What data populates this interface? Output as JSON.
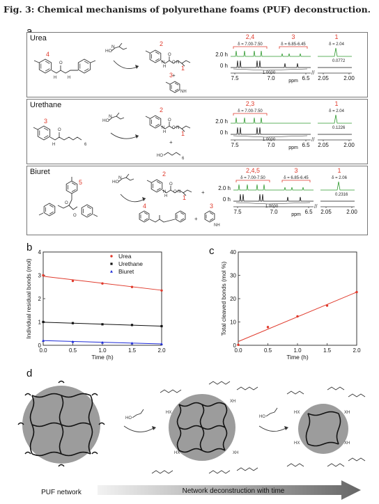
{
  "figure_title": "Fig. 3: Chemical mechanisms of polyurethane foams (PUF) deconstruction.",
  "panel_a": {
    "label": "a",
    "ppm": "ppm",
    "break": "//",
    "rows": [
      {
        "name": "Urea",
        "reactant_num": "4",
        "product_nums": [
          "2",
          "1",
          "3"
        ],
        "plus": "+",
        "nh2": "NH",
        "nh2_sub": "2",
        "peaks": [
          {
            "num": "2,4",
            "delta": "δ = 7.00-7.50"
          },
          {
            "num": "3",
            "delta": "δ = 6.85-6.45"
          },
          {
            "num": "1",
            "delta": "δ = 2.04"
          }
        ],
        "t2": "2.0 h",
        "t0": "0 h",
        "integral_main": "1.0000",
        "integral_small": "0.0772",
        "x_ticks": [
          "7.5",
          "7.0",
          "6.5",
          "2.05",
          "2.00"
        ]
      },
      {
        "name": "Urethane",
        "reactant_num": "3",
        "product_nums": [
          "2",
          "1"
        ],
        "plus": "+",
        "sub6": "6",
        "peaks": [
          {
            "num": "2,3",
            "delta": "δ = 7.00-7.50"
          },
          {
            "num": "1",
            "delta": "δ = 2.04"
          }
        ],
        "t2": "2.0 h",
        "t0": "0 h",
        "integral_main": "1.0000",
        "integral_small": "0.1226",
        "x_ticks": [
          "7.5",
          "7.0",
          "6.5",
          "2.05",
          "2.00"
        ]
      },
      {
        "name": "Biuret",
        "reactant_num": "5",
        "product_nums": [
          "2",
          "1",
          "4",
          "3"
        ],
        "plus": "+",
        "nh2": "NH",
        "nh2_sub": "2",
        "peaks": [
          {
            "num": "2,4,5",
            "delta": "δ = 7.00-7.50"
          },
          {
            "num": "3",
            "delta": "δ = 6.85-6.45"
          },
          {
            "num": "1",
            "delta": "δ = 2.06"
          }
        ],
        "t2": "2.0 h",
        "t0": "0 h",
        "integral_main": "1.0000",
        "integral_small": "0.2316",
        "x_ticks": [
          "7.5",
          "7.0",
          "6.5",
          "2.05",
          "2.00"
        ]
      }
    ],
    "ho": "HO"
  },
  "chart_data": [
    {
      "type": "scatter",
      "panel": "b",
      "ylabel": "Individual residual bonds (mol)",
      "xlabel": "Time (h)",
      "xlim": [
        0.0,
        2.0
      ],
      "ylim": [
        0,
        4
      ],
      "x_ticks": [
        "0.0",
        "0.5",
        "1.0",
        "1.5",
        "2.0"
      ],
      "y_ticks": [
        "0",
        "1",
        "2",
        "3",
        "4"
      ],
      "legend_position": "top-right",
      "series": [
        {
          "name": "Urea",
          "color": "#e03a2c",
          "marker": "circle",
          "x": [
            0.0,
            0.5,
            1.0,
            1.5,
            2.0
          ],
          "y": [
            3.0,
            2.76,
            2.65,
            2.5,
            2.35
          ],
          "fit": [
            [
              0.0,
              2.96
            ],
            [
              2.0,
              2.36
            ]
          ]
        },
        {
          "name": "Urethane",
          "color": "#111111",
          "marker": "square",
          "x": [
            0.0,
            0.5,
            1.0,
            1.5,
            2.0
          ],
          "y": [
            1.0,
            0.95,
            0.9,
            0.87,
            0.82
          ],
          "fit": [
            [
              0.0,
              0.99
            ],
            [
              2.0,
              0.82
            ]
          ]
        },
        {
          "name": "Biuret",
          "color": "#1c2ad6",
          "marker": "triangle",
          "x": [
            0.0,
            0.5,
            1.0,
            1.5,
            2.0
          ],
          "y": [
            0.2,
            0.15,
            0.12,
            0.09,
            0.06
          ],
          "fit": [
            [
              0.0,
              0.2
            ],
            [
              2.0,
              0.06
            ]
          ]
        }
      ]
    },
    {
      "type": "scatter",
      "panel": "c",
      "ylabel": "Total cleaved bonds (mol %)",
      "xlabel": "Time (h)",
      "xlim": [
        0.0,
        2.0
      ],
      "ylim": [
        0,
        40
      ],
      "x_ticks": [
        "0.0",
        "0.5",
        "1.0",
        "1.5",
        "2.0"
      ],
      "y_ticks": [
        "0",
        "10",
        "20",
        "30",
        "40"
      ],
      "series": [
        {
          "name": "",
          "color": "#e03a2c",
          "marker": "circle",
          "x": [
            0.0,
            0.5,
            1.0,
            1.5,
            2.0
          ],
          "y": [
            0.2,
            7.8,
            12.4,
            17.0,
            22.8
          ],
          "fit": [
            [
              0.0,
              1.6
            ],
            [
              2.0,
              22.8
            ]
          ]
        }
      ]
    }
  ],
  "panel_d": {
    "label": "d",
    "network_label": "PUF network",
    "arrow_label": "Network deconstruction with time",
    "hx": "HX",
    "xh": "XH",
    "ho": "HO"
  },
  "colors": {
    "green": "#2f9a2f",
    "red": "#e03a2c",
    "grey": "#9c9c9c"
  }
}
